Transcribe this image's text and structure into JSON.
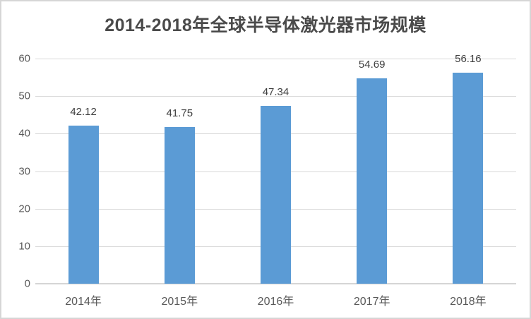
{
  "chart_data": {
    "type": "bar",
    "title": "2014-2018年全球半导体激光器市场规模",
    "categories": [
      "2014年",
      "2015年",
      "2016年",
      "2017年",
      "2018年"
    ],
    "values": [
      42.12,
      41.75,
      47.34,
      54.69,
      56.16
    ],
    "data_labels": [
      "42.12",
      "41.75",
      "47.34",
      "54.69",
      "56.16"
    ],
    "xlabel": "",
    "ylabel": "",
    "ylim": [
      0,
      60
    ],
    "yticks": [
      0,
      10,
      20,
      30,
      40,
      50,
      60
    ],
    "grid": "horizontal",
    "legend": "none",
    "colors": {
      "bar": "#5B9BD5",
      "gridline": "#d9d9d9",
      "axis_line": "#d5d5d5",
      "tick_label": "#595959",
      "data_label": "#404040",
      "title": "#4a4a4a",
      "frame_border": "#d6d6d6",
      "background": "#ffffff"
    }
  }
}
